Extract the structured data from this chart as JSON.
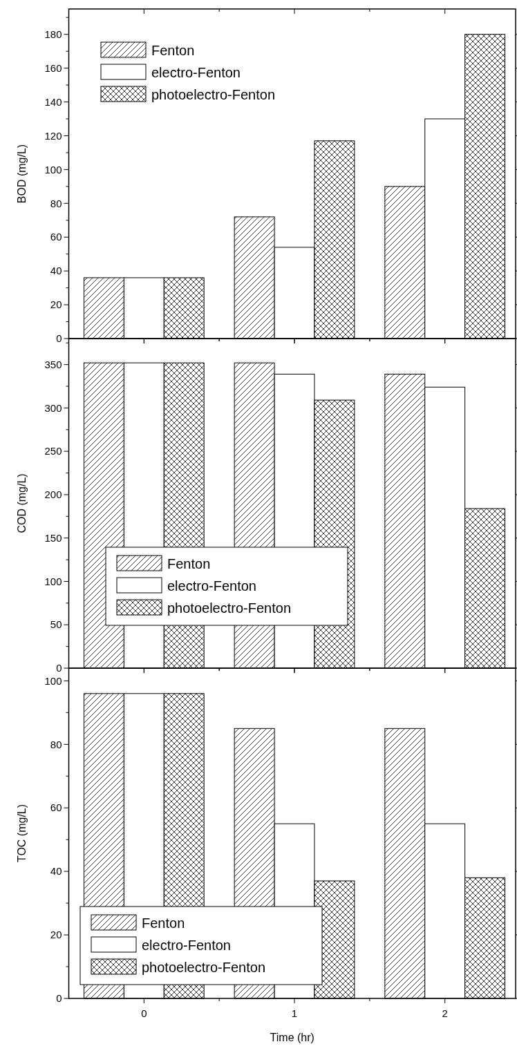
{
  "chart_data": [
    {
      "type": "bar",
      "ylabel": "BOD (mg/L)",
      "categories": [
        "0",
        "1",
        "2"
      ],
      "ylim": [
        0,
        195
      ],
      "yticks": [
        0,
        {
          "value": 10,
          "label": null
        },
        20,
        {
          "value": 30,
          "label": null
        },
        40,
        {
          "value": 50,
          "label": null
        },
        60,
        {
          "value": 70,
          "label": null
        },
        80,
        {
          "value": 90,
          "label": null
        },
        100,
        {
          "value": 110,
          "label": null
        },
        120,
        {
          "value": 130,
          "label": null
        },
        140,
        {
          "value": 150,
          "label": null
        },
        160,
        {
          "value": 170,
          "label": null
        },
        180,
        {
          "value": 190,
          "label": null
        }
      ],
      "tick_labels": "y",
      "legend": "top left",
      "series": [
        {
          "name": "Fenton",
          "color": "#000000",
          "values": [
            36,
            72,
            90
          ]
        },
        {
          "name": "electro-Fenton",
          "color": "#ffffff",
          "values": [
            36,
            54,
            130
          ]
        },
        {
          "name": "photoelectro-Fenton",
          "color": "#000000",
          "values": [
            36,
            117,
            180
          ]
        }
      ]
    },
    {
      "type": "bar",
      "ylabel": "COD (mg/L)",
      "categories": [
        "0",
        "1",
        "2"
      ],
      "ylim": [
        0,
        380
      ],
      "yticks": [
        0,
        {
          "value": 25,
          "label": null
        },
        50,
        {
          "value": 75,
          "label": null
        },
        100,
        {
          "value": 125,
          "label": null
        },
        150,
        {
          "value": 175,
          "label": null
        },
        200,
        {
          "value": 225,
          "label": null
        },
        250,
        {
          "value": 275,
          "label": null
        },
        300,
        {
          "value": 325,
          "label": null
        },
        350,
        {
          "value": 375,
          "label": null
        }
      ],
      "tick_labels": "y",
      "legend": "bottom left",
      "series": [
        {
          "name": "Fenton",
          "color": "#000000",
          "values": [
            352,
            352,
            339
          ]
        },
        {
          "name": "electro-Fenton",
          "color": "#ffffff",
          "values": [
            352,
            339,
            324
          ]
        },
        {
          "name": "photoelectro-Fenton",
          "color": "#000000",
          "values": [
            352,
            309,
            184
          ]
        }
      ]
    },
    {
      "type": "bar",
      "ylabel": "TOC (mg/L)",
      "xlabel": "Time (hr)",
      "categories": [
        "0",
        "1",
        "2"
      ],
      "ylim": [
        0,
        104
      ],
      "yticks": [
        0,
        {
          "value": 10,
          "label": null
        },
        20,
        {
          "value": 30,
          "label": null
        },
        40,
        {
          "value": 50,
          "label": null
        },
        60,
        {
          "value": 70,
          "label": null
        },
        80,
        {
          "value": 90,
          "label": null
        },
        100
      ],
      "legend": "bottom left",
      "series": [
        {
          "name": "Fenton",
          "color": "#000000",
          "values": [
            96,
            85,
            85
          ]
        },
        {
          "name": "electro-Fenton",
          "color": "#ffffff",
          "values": [
            96,
            55,
            55
          ]
        },
        {
          "name": "photoelectro-Fenton",
          "color": "#000000",
          "values": [
            96,
            37,
            38
          ]
        }
      ]
    }
  ]
}
